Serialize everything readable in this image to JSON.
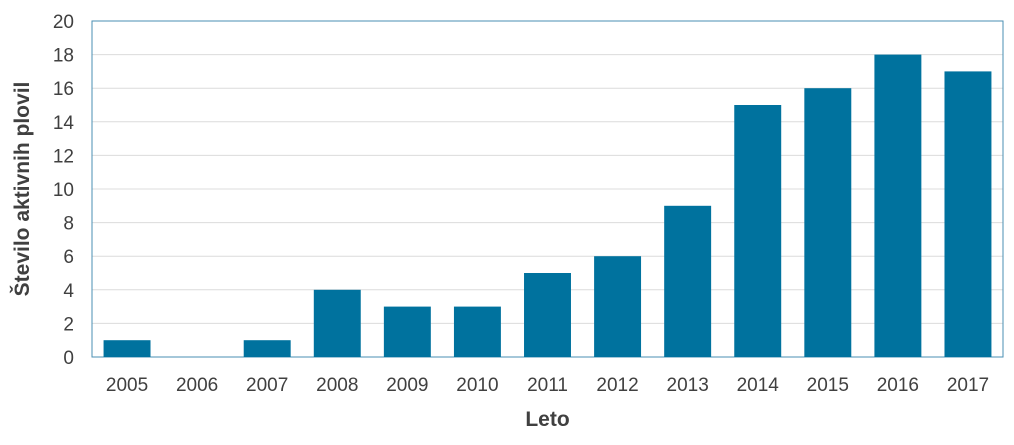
{
  "chart_data": {
    "type": "bar",
    "categories": [
      "2005",
      "2006",
      "2007",
      "2008",
      "2009",
      "2010",
      "2011",
      "2012",
      "2013",
      "2014",
      "2015",
      "2016",
      "2017"
    ],
    "values": [
      1,
      0,
      1,
      4,
      3,
      3,
      5,
      6,
      9,
      15,
      16,
      18,
      17
    ],
    "xlabel": "Leto",
    "ylabel": "Število aktivnih plovil",
    "ylim": [
      0,
      20
    ],
    "yticks": [
      0,
      2,
      4,
      6,
      8,
      10,
      12,
      14,
      16,
      18,
      20
    ],
    "grid": true,
    "legend": "none",
    "colors": {
      "bar": "#00729e",
      "grid": "#dcdcdc",
      "frame": "#4a8fb3"
    }
  }
}
